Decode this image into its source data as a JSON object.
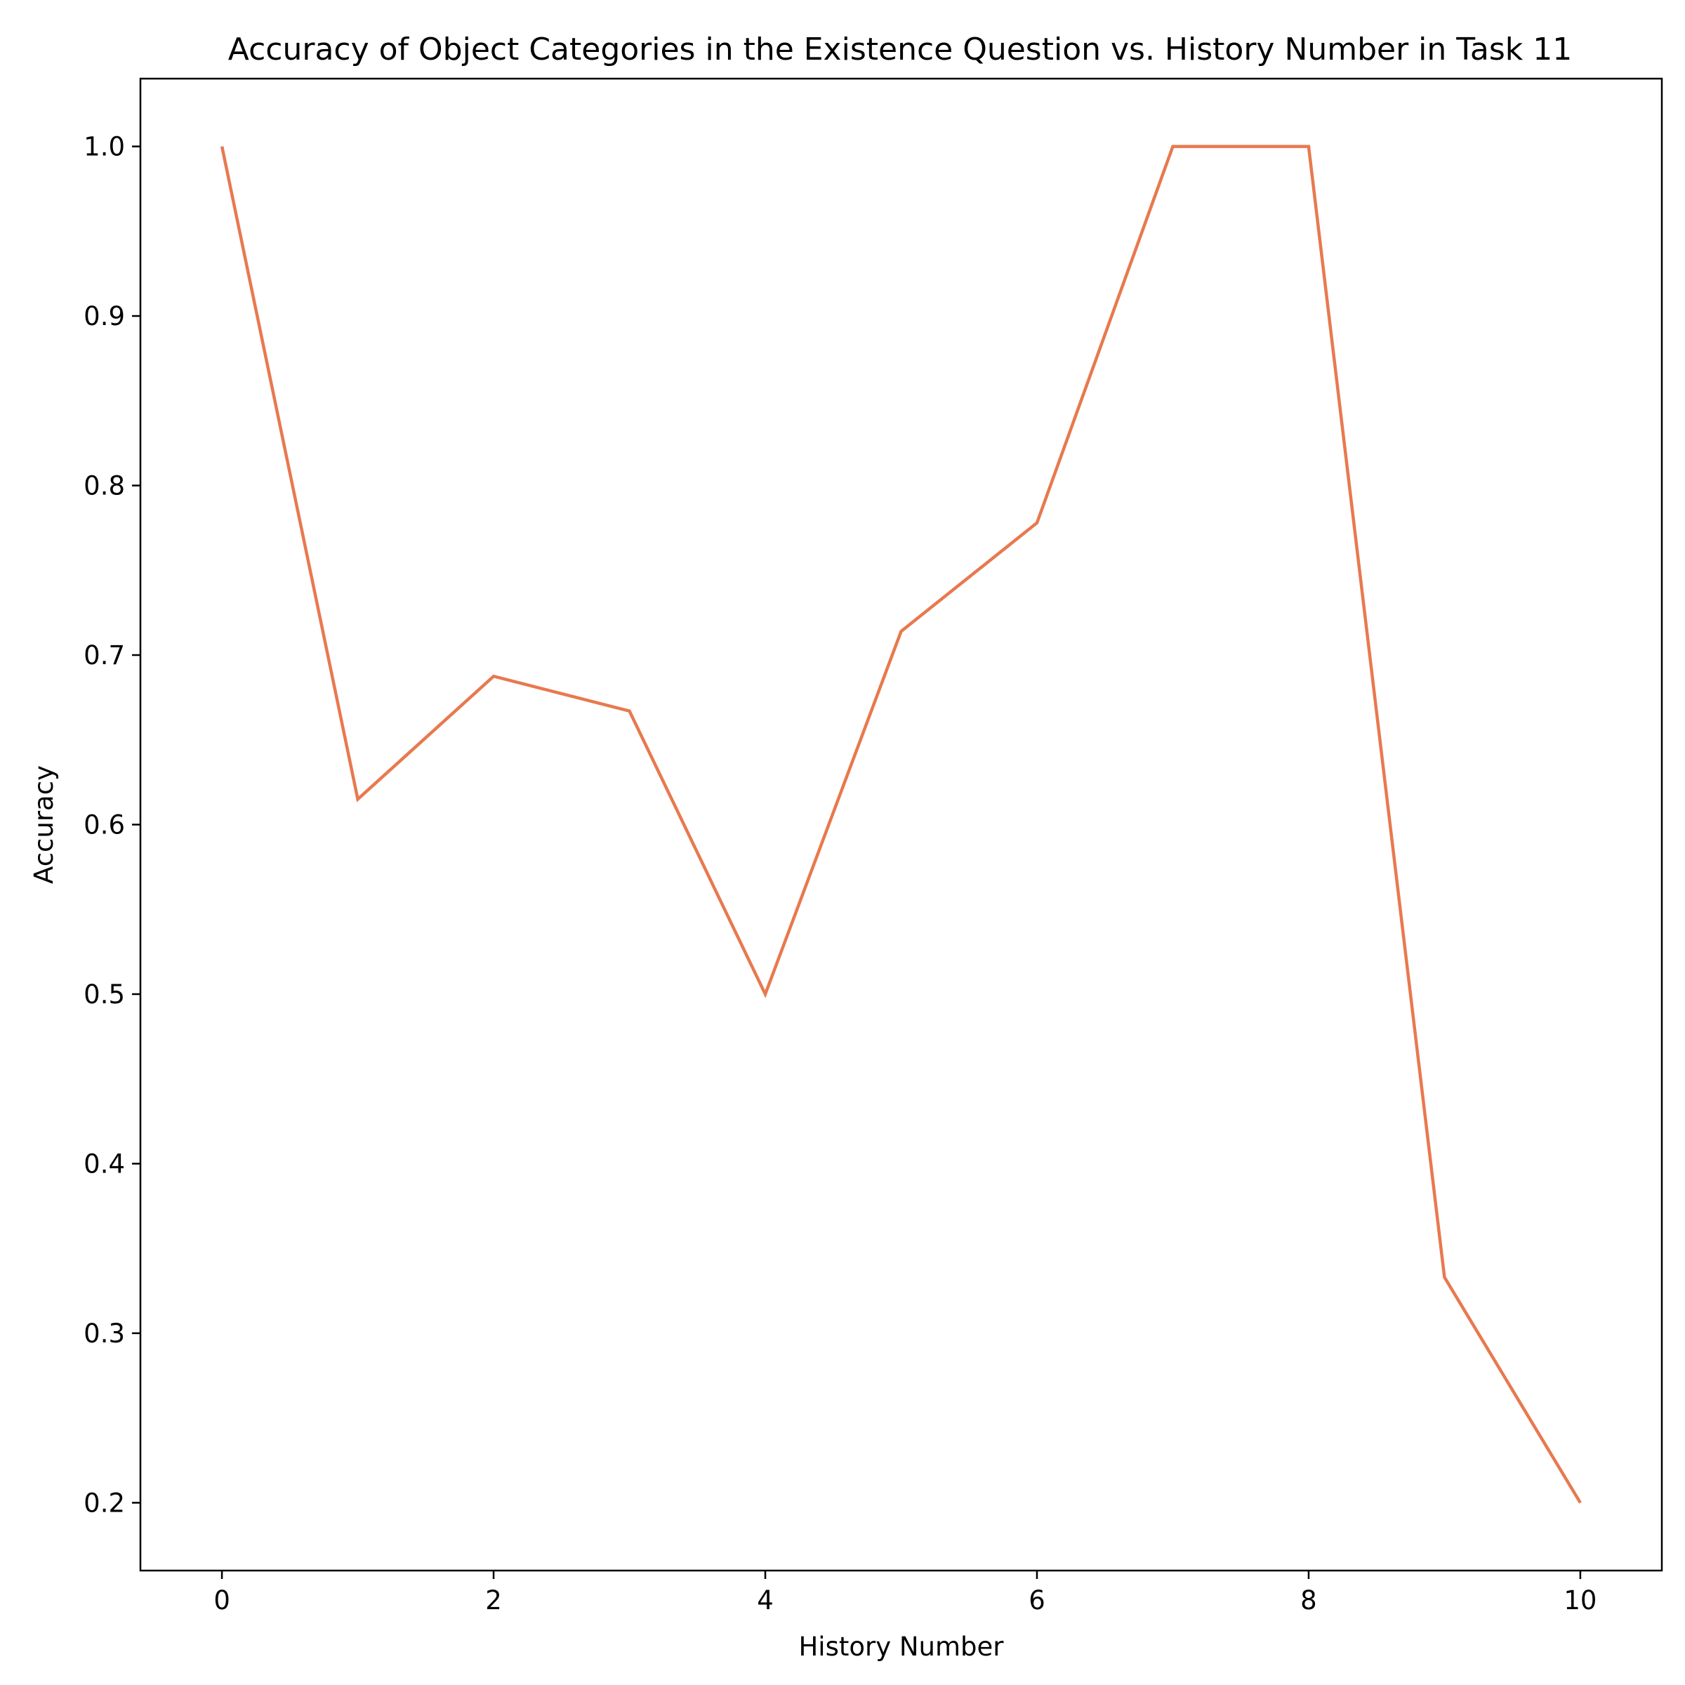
{
  "chart_data": {
    "type": "line",
    "title": "Accuracy of Object Categories in the Existence Question vs. History Number in Task 11",
    "xlabel": "History Number",
    "ylabel": "Accuracy",
    "x": [
      0,
      1,
      2,
      3,
      4,
      5,
      6,
      7,
      8,
      9,
      10
    ],
    "series": [
      {
        "values": [
          1.0,
          0.615,
          0.6875,
          0.667,
          0.5,
          0.714,
          0.778,
          1.0,
          1.0,
          0.333,
          0.2
        ],
        "color": "#e8794f"
      }
    ],
    "xlim": [
      -0.6,
      10.6
    ],
    "ylim": [
      0.16,
      1.04
    ],
    "xticks": [
      0,
      2,
      4,
      6,
      8,
      10
    ],
    "xtick_labels": [
      "0",
      "2",
      "4",
      "6",
      "8",
      "10"
    ],
    "yticks": [
      0.2,
      0.3,
      0.4,
      0.5,
      0.6,
      0.7,
      0.8,
      0.9,
      1.0
    ],
    "ytick_labels": [
      "0.2",
      "0.3",
      "0.4",
      "0.5",
      "0.6",
      "0.7",
      "0.8",
      "0.9",
      "1.0"
    ],
    "grid": false,
    "legend": "none"
  }
}
